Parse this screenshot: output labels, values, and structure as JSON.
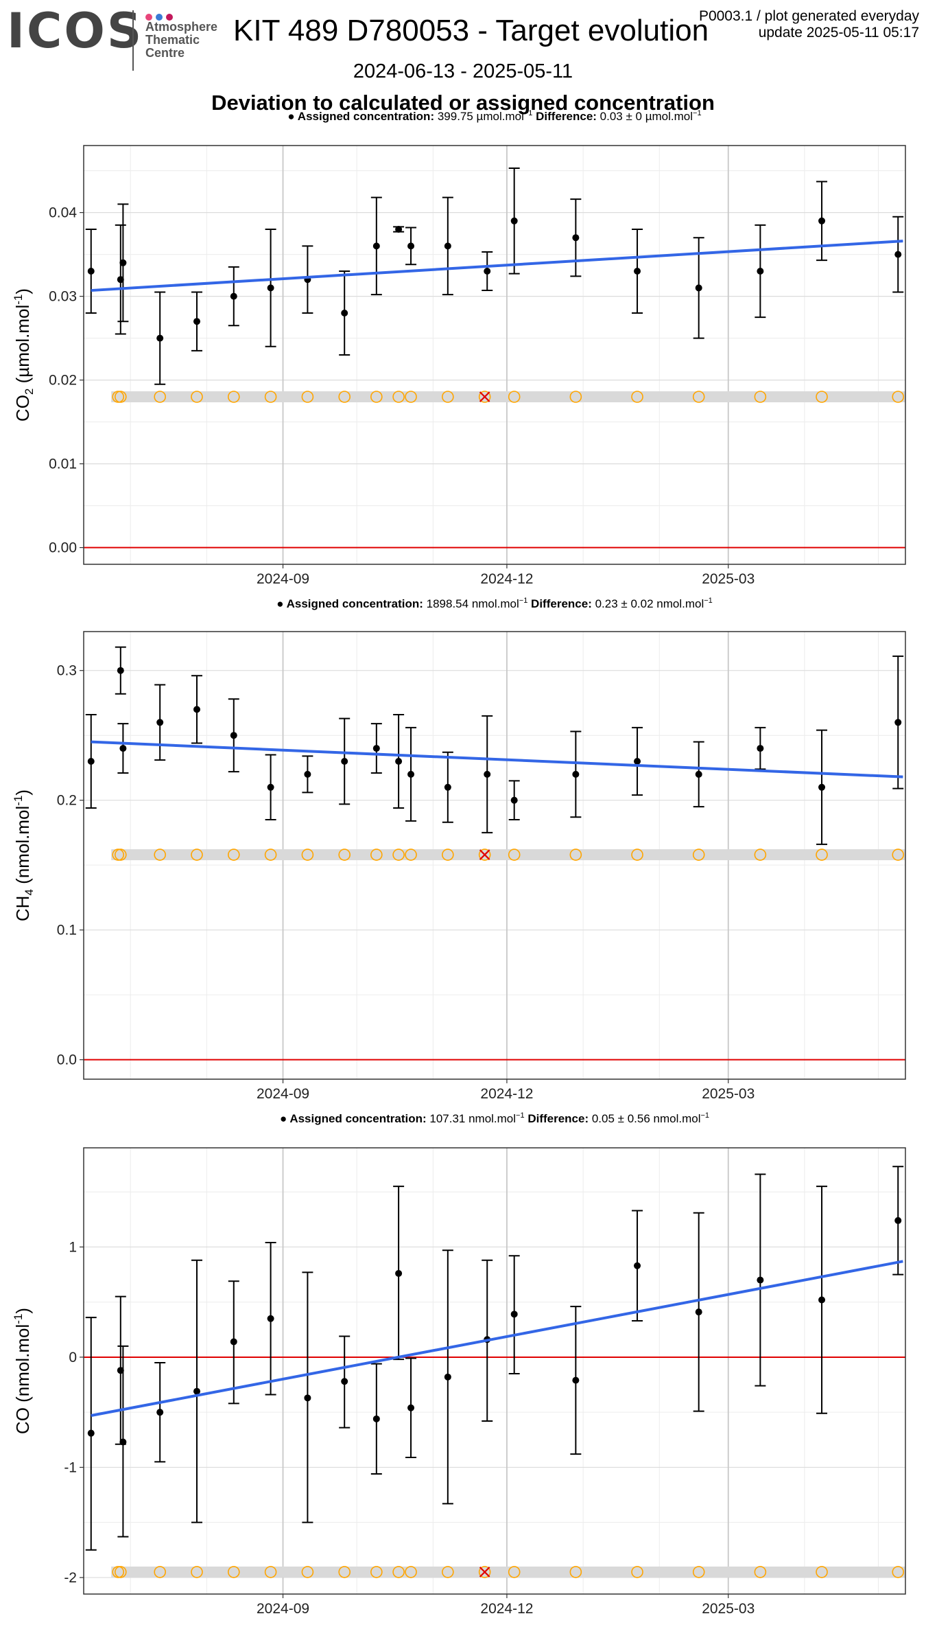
{
  "header": {
    "logo": "ICOS",
    "logo_sub": [
      "Atmosphere",
      "Thematic",
      "Centre"
    ],
    "logo_dot_colors": [
      "#e8457a",
      "#3a7bd5",
      "#c2185b"
    ],
    "title": "KIT 489 D780053 - Target evolution",
    "subtitle": "2024-06-13 - 2025-05-11",
    "heading": "Deviation to calculated or assigned concentration",
    "meta_line1": "P0003.1 / plot generated everyday",
    "meta_line2": "update  2025-05-11 05:17"
  },
  "colors": {
    "trend": "#3366e6",
    "zero_line": "#e00000",
    "target_marker": "#ffa500",
    "reference_band": "#d9d9d9",
    "flag_marker": "#e00000",
    "points": "#000000"
  },
  "chart_data": [
    {
      "type": "scatter",
      "gas": "CO2",
      "assigned_label": "Assigned concentration:",
      "assigned_value": "399.75 µmol.mol",
      "difference_label": "Difference:",
      "difference_value": "0.03 ± 0 µmol.mol",
      "unit_superscript": "−1",
      "ylabel": "CO2 (µmol.mol-1)",
      "ylim": [
        -0.002,
        0.048
      ],
      "yticks": [
        0,
        0.01,
        0.02,
        0.03,
        0.04
      ],
      "ytick_labels": [
        "0.00",
        "0.01",
        "0.02",
        "0.03",
        "0.04"
      ],
      "xlim": [
        "2024-06-12",
        "2025-05-12"
      ],
      "xticks": [
        "2024-09-01",
        "2024-12-01",
        "2025-03-01"
      ],
      "xtick_labels": [
        "2024-09",
        "2024-12",
        "2025-03"
      ],
      "reference_level": 0.018,
      "trend": {
        "start": [
          "2024-06-15",
          0.0307
        ],
        "end": [
          "2025-05-11",
          0.0366
        ]
      },
      "points": [
        {
          "x": "2024-06-15",
          "y": 0.033,
          "lo": 0.028,
          "hi": 0.038
        },
        {
          "x": "2024-06-27",
          "y": 0.032,
          "lo": 0.0255,
          "hi": 0.0385
        },
        {
          "x": "2024-06-28",
          "y": 0.034,
          "lo": 0.027,
          "hi": 0.041
        },
        {
          "x": "2024-07-13",
          "y": 0.025,
          "lo": 0.0195,
          "hi": 0.0305
        },
        {
          "x": "2024-07-28",
          "y": 0.027,
          "lo": 0.0235,
          "hi": 0.0305
        },
        {
          "x": "2024-08-12",
          "y": 0.03,
          "lo": 0.0265,
          "hi": 0.0335
        },
        {
          "x": "2024-08-27",
          "y": 0.031,
          "lo": 0.024,
          "hi": 0.038
        },
        {
          "x": "2024-09-11",
          "y": 0.032,
          "lo": 0.028,
          "hi": 0.036
        },
        {
          "x": "2024-09-26",
          "y": 0.028,
          "lo": 0.023,
          "hi": 0.033
        },
        {
          "x": "2024-10-09",
          "y": 0.036,
          "lo": 0.0302,
          "hi": 0.0418
        },
        {
          "x": "2024-10-18",
          "y": 0.038,
          "lo": 0.0377,
          "hi": 0.0383
        },
        {
          "x": "2024-10-23",
          "y": 0.036,
          "lo": 0.0338,
          "hi": 0.0382
        },
        {
          "x": "2024-11-07",
          "y": 0.036,
          "lo": 0.0302,
          "hi": 0.0418
        },
        {
          "x": "2024-11-23",
          "y": 0.033,
          "lo": 0.0307,
          "hi": 0.0353
        },
        {
          "x": "2024-12-04",
          "y": 0.039,
          "lo": 0.0327,
          "hi": 0.0453
        },
        {
          "x": "2024-12-29",
          "y": 0.037,
          "lo": 0.0324,
          "hi": 0.0416
        },
        {
          "x": "2025-01-23",
          "y": 0.033,
          "lo": 0.028,
          "hi": 0.038
        },
        {
          "x": "2025-02-17",
          "y": 0.031,
          "lo": 0.025,
          "hi": 0.037
        },
        {
          "x": "2025-03-14",
          "y": 0.033,
          "lo": 0.0275,
          "hi": 0.0385
        },
        {
          "x": "2025-04-08",
          "y": 0.039,
          "lo": 0.0343,
          "hi": 0.0437
        },
        {
          "x": "2025-05-09",
          "y": 0.035,
          "lo": 0.0305,
          "hi": 0.0395
        }
      ],
      "markers": [
        "2024-06-26",
        "2024-06-27",
        "2024-07-13",
        "2024-07-28",
        "2024-08-12",
        "2024-08-27",
        "2024-09-11",
        "2024-09-26",
        "2024-10-09",
        "2024-10-18",
        "2024-10-23",
        "2024-11-07",
        "2024-11-22",
        "2024-12-04",
        "2024-12-29",
        "2025-01-23",
        "2025-02-17",
        "2025-03-14",
        "2025-04-08",
        "2025-05-09"
      ],
      "flag_x": "2024-11-22"
    },
    {
      "type": "scatter",
      "gas": "CH4",
      "assigned_label": "Assigned concentration:",
      "assigned_value": "1898.54 nmol.mol",
      "difference_label": "Difference:",
      "difference_value": "0.23 ± 0.02 nmol.mol",
      "unit_superscript": "−1",
      "ylabel": "CH4 (nmol.mol-1)",
      "ylim": [
        -0.015,
        0.33
      ],
      "yticks": [
        0,
        0.1,
        0.2,
        0.3
      ],
      "ytick_labels": [
        "0.0",
        "0.1",
        "0.2",
        "0.3"
      ],
      "xlim": [
        "2024-06-12",
        "2025-05-12"
      ],
      "xticks": [
        "2024-09-01",
        "2024-12-01",
        "2025-03-01"
      ],
      "xtick_labels": [
        "2024-09",
        "2024-12",
        "2025-03"
      ],
      "reference_level": 0.158,
      "trend": {
        "start": [
          "2024-06-15",
          0.245
        ],
        "end": [
          "2025-05-11",
          0.218
        ]
      },
      "points": [
        {
          "x": "2024-06-15",
          "y": 0.23,
          "lo": 0.194,
          "hi": 0.266
        },
        {
          "x": "2024-06-27",
          "y": 0.3,
          "lo": 0.282,
          "hi": 0.318
        },
        {
          "x": "2024-06-28",
          "y": 0.24,
          "lo": 0.221,
          "hi": 0.259
        },
        {
          "x": "2024-07-13",
          "y": 0.26,
          "lo": 0.231,
          "hi": 0.289
        },
        {
          "x": "2024-07-28",
          "y": 0.27,
          "lo": 0.244,
          "hi": 0.296
        },
        {
          "x": "2024-08-12",
          "y": 0.25,
          "lo": 0.222,
          "hi": 0.278
        },
        {
          "x": "2024-08-27",
          "y": 0.21,
          "lo": 0.185,
          "hi": 0.235
        },
        {
          "x": "2024-09-11",
          "y": 0.22,
          "lo": 0.206,
          "hi": 0.234
        },
        {
          "x": "2024-09-26",
          "y": 0.23,
          "lo": 0.197,
          "hi": 0.263
        },
        {
          "x": "2024-10-09",
          "y": 0.24,
          "lo": 0.221,
          "hi": 0.259
        },
        {
          "x": "2024-10-18",
          "y": 0.23,
          "lo": 0.194,
          "hi": 0.266
        },
        {
          "x": "2024-10-23",
          "y": 0.22,
          "lo": 0.184,
          "hi": 0.256
        },
        {
          "x": "2024-11-07",
          "y": 0.21,
          "lo": 0.183,
          "hi": 0.237
        },
        {
          "x": "2024-11-23",
          "y": 0.22,
          "lo": 0.175,
          "hi": 0.265
        },
        {
          "x": "2024-12-04",
          "y": 0.2,
          "lo": 0.185,
          "hi": 0.215
        },
        {
          "x": "2024-12-29",
          "y": 0.22,
          "lo": 0.187,
          "hi": 0.253
        },
        {
          "x": "2025-01-23",
          "y": 0.23,
          "lo": 0.204,
          "hi": 0.256
        },
        {
          "x": "2025-02-17",
          "y": 0.22,
          "lo": 0.195,
          "hi": 0.245
        },
        {
          "x": "2025-03-14",
          "y": 0.24,
          "lo": 0.224,
          "hi": 0.256
        },
        {
          "x": "2025-04-08",
          "y": 0.21,
          "lo": 0.166,
          "hi": 0.254
        },
        {
          "x": "2025-05-09",
          "y": 0.26,
          "lo": 0.209,
          "hi": 0.311
        }
      ],
      "markers": [
        "2024-06-26",
        "2024-06-27",
        "2024-07-13",
        "2024-07-28",
        "2024-08-12",
        "2024-08-27",
        "2024-09-11",
        "2024-09-26",
        "2024-10-09",
        "2024-10-18",
        "2024-10-23",
        "2024-11-07",
        "2024-11-22",
        "2024-12-04",
        "2024-12-29",
        "2025-01-23",
        "2025-02-17",
        "2025-03-14",
        "2025-04-08",
        "2025-05-09"
      ],
      "flag_x": "2024-11-22"
    },
    {
      "type": "scatter",
      "gas": "CO",
      "assigned_label": "Assigned concentration:",
      "assigned_value": "107.31 nmol.mol",
      "difference_label": "Difference:",
      "difference_value": "0.05 ± 0.56 nmol.mol",
      "unit_superscript": "−1",
      "ylabel": "CO (nmol.mol-1)",
      "ylim": [
        -2.15,
        1.9
      ],
      "yticks": [
        -2,
        -1,
        0,
        1
      ],
      "ytick_labels": [
        "-2",
        "-1",
        "0",
        "1"
      ],
      "xlim": [
        "2024-06-12",
        "2025-05-12"
      ],
      "xticks": [
        "2024-09-01",
        "2024-12-01",
        "2025-03-01"
      ],
      "xtick_labels": [
        "2024-09",
        "2024-12",
        "2025-03"
      ],
      "reference_level": -1.95,
      "trend": {
        "start": [
          "2024-06-15",
          -0.53
        ],
        "end": [
          "2025-05-11",
          0.87
        ]
      },
      "points": [
        {
          "x": "2024-06-15",
          "y": -0.69,
          "lo": -1.75,
          "hi": 0.36
        },
        {
          "x": "2024-06-27",
          "y": -0.12,
          "lo": -0.79,
          "hi": 0.55
        },
        {
          "x": "2024-06-28",
          "y": -0.77,
          "lo": -1.63,
          "hi": 0.1
        },
        {
          "x": "2024-07-13",
          "y": -0.5,
          "lo": -0.95,
          "hi": -0.05
        },
        {
          "x": "2024-07-28",
          "y": -0.31,
          "lo": -1.5,
          "hi": 0.88
        },
        {
          "x": "2024-08-12",
          "y": 0.14,
          "lo": -0.42,
          "hi": 0.69
        },
        {
          "x": "2024-08-27",
          "y": 0.35,
          "lo": -0.34,
          "hi": 1.04
        },
        {
          "x": "2024-09-11",
          "y": -0.37,
          "lo": -1.5,
          "hi": 0.77
        },
        {
          "x": "2024-09-26",
          "y": -0.22,
          "lo": -0.64,
          "hi": 0.19
        },
        {
          "x": "2024-10-09",
          "y": -0.56,
          "lo": -1.06,
          "hi": -0.06
        },
        {
          "x": "2024-10-18",
          "y": 0.76,
          "lo": -0.02,
          "hi": 1.55
        },
        {
          "x": "2024-10-23",
          "y": -0.46,
          "lo": -0.91,
          "hi": -0.01
        },
        {
          "x": "2024-11-07",
          "y": -0.18,
          "lo": -1.33,
          "hi": 0.97
        },
        {
          "x": "2024-11-23",
          "y": 0.16,
          "lo": -0.58,
          "hi": 0.88
        },
        {
          "x": "2024-12-04",
          "y": 0.39,
          "lo": -0.15,
          "hi": 0.92
        },
        {
          "x": "2024-12-29",
          "y": -0.21,
          "lo": -0.88,
          "hi": 0.46
        },
        {
          "x": "2025-01-23",
          "y": 0.83,
          "lo": 0.33,
          "hi": 1.33
        },
        {
          "x": "2025-02-17",
          "y": 0.41,
          "lo": -0.49,
          "hi": 1.31
        },
        {
          "x": "2025-03-14",
          "y": 0.7,
          "lo": -0.26,
          "hi": 1.66
        },
        {
          "x": "2025-04-08",
          "y": 0.52,
          "lo": -0.51,
          "hi": 1.55
        },
        {
          "x": "2025-05-09",
          "y": 1.24,
          "lo": 0.75,
          "hi": 1.73
        }
      ],
      "markers": [
        "2024-06-26",
        "2024-06-27",
        "2024-07-13",
        "2024-07-28",
        "2024-08-12",
        "2024-08-27",
        "2024-09-11",
        "2024-09-26",
        "2024-10-09",
        "2024-10-18",
        "2024-10-23",
        "2024-11-07",
        "2024-11-22",
        "2024-12-04",
        "2024-12-29",
        "2025-01-23",
        "2025-02-17",
        "2025-03-14",
        "2025-04-08",
        "2025-05-09"
      ],
      "flag_x": "2024-11-22"
    }
  ]
}
